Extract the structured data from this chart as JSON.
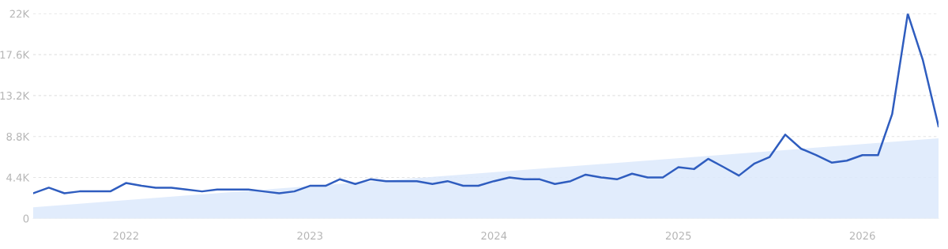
{
  "chart_data": {
    "type": "line",
    "x": [
      "2021-07",
      "2021-08",
      "2021-09",
      "2021-10",
      "2021-11",
      "2021-12",
      "2022-01",
      "2022-02",
      "2022-03",
      "2022-04",
      "2022-05",
      "2022-06",
      "2022-07",
      "2022-08",
      "2022-09",
      "2022-10",
      "2022-11",
      "2022-12",
      "2023-01",
      "2023-02",
      "2023-03",
      "2023-04",
      "2023-05",
      "2023-06",
      "2023-07",
      "2023-08",
      "2023-09",
      "2023-10",
      "2023-11",
      "2023-12",
      "2024-01",
      "2024-02",
      "2024-03",
      "2024-04",
      "2024-05",
      "2024-06",
      "2024-07",
      "2024-08",
      "2024-09",
      "2024-10",
      "2024-11",
      "2024-12",
      "2025-01",
      "2025-02",
      "2025-03",
      "2025-04",
      "2025-05",
      "2025-06",
      "2025-07",
      "2025-08",
      "2025-09",
      "2025-10",
      "2025-11",
      "2025-12",
      "2026-01",
      "2026-02",
      "2026-03",
      "2026-04",
      "2026-05",
      "2026-06"
    ],
    "series": [
      {
        "type": "area",
        "color": "#dce9fb",
        "x": [
          "2021-07",
          "2026-06"
        ],
        "values": [
          1200,
          8600
        ]
      },
      {
        "color": "#2f5dbf",
        "values": [
          2700,
          3300,
          2700,
          2900,
          2900,
          2900,
          3800,
          3500,
          3300,
          3300,
          3100,
          2900,
          3100,
          3100,
          3100,
          2900,
          2700,
          2900,
          3500,
          3500,
          4200,
          3700,
          4200,
          4000,
          4000,
          4000,
          3700,
          4000,
          3500,
          3500,
          4000,
          4400,
          4200,
          4200,
          3700,
          4000,
          4700,
          4400,
          4200,
          4800,
          4400,
          4400,
          5500,
          5300,
          6400,
          5500,
          4600,
          5900,
          6600,
          9000,
          7500,
          6800,
          6000,
          6200,
          6800,
          6800,
          11200,
          22000,
          17000,
          9900
        ]
      }
    ],
    "xlim": [
      "2021-07",
      "2026-06"
    ],
    "xticks": [
      {
        "value": "2022-01",
        "label": "2022"
      },
      {
        "value": "2023-01",
        "label": "2023"
      },
      {
        "value": "2024-01",
        "label": "2024"
      },
      {
        "value": "2025-01",
        "label": "2025"
      },
      {
        "value": "2026-01",
        "label": "2026"
      }
    ],
    "ylim": [
      0,
      22000
    ],
    "yticks": [
      0,
      {
        "value": 4400,
        "label": "4.4K"
      },
      {
        "value": 8800,
        "label": "8.8K"
      },
      {
        "value": 13200,
        "label": "13.2K"
      },
      {
        "value": 17600,
        "label": "17.6K"
      },
      {
        "value": 22000,
        "label": "22K"
      }
    ],
    "grid": "y",
    "line_style": "solid",
    "marker": "none"
  }
}
